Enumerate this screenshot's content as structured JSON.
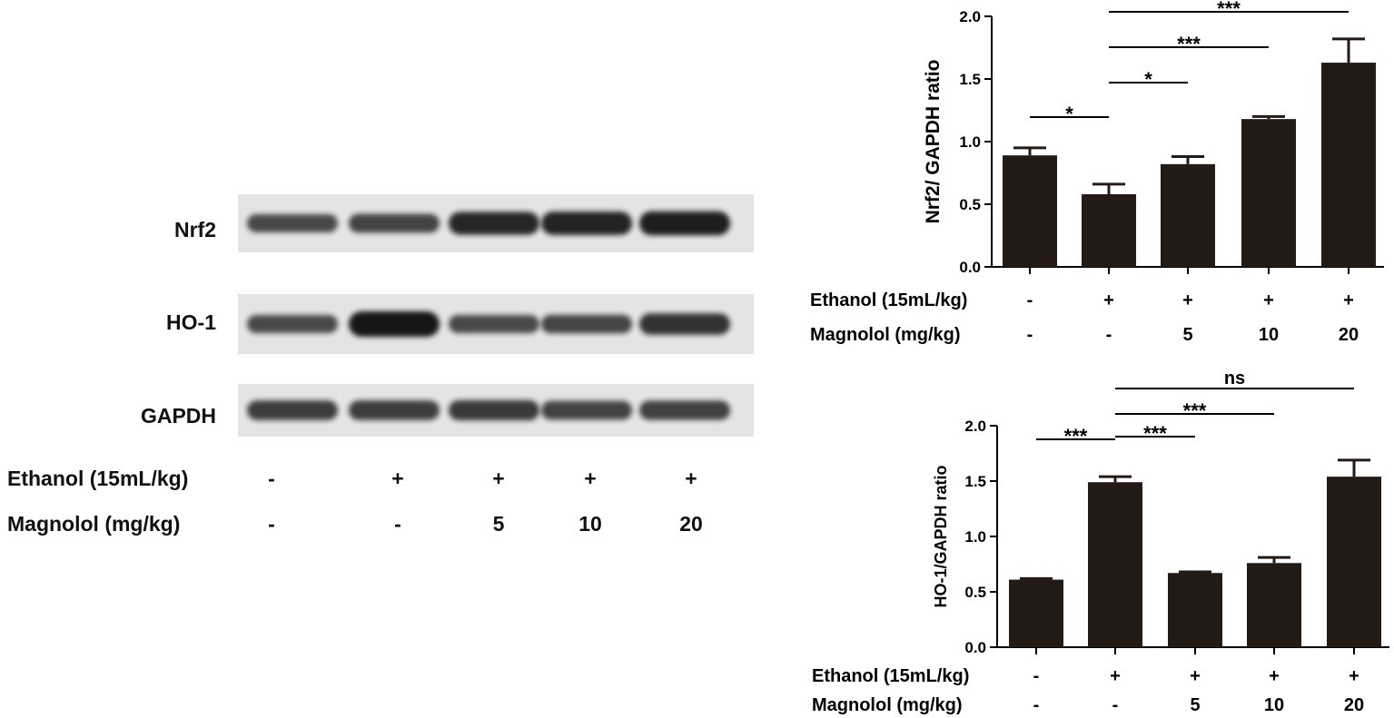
{
  "blot": {
    "rows": [
      {
        "label": "Nrf2",
        "intensities": [
          0.55,
          0.6,
          0.85,
          0.88,
          0.92
        ]
      },
      {
        "label": "HO-1",
        "intensities": [
          0.55,
          1.0,
          0.55,
          0.58,
          0.75
        ]
      },
      {
        "label": "GAPDH",
        "intensities": [
          0.65,
          0.65,
          0.68,
          0.6,
          0.62
        ]
      }
    ],
    "conditions": {
      "ethanol_label": "Ethanol (15mL/kg)",
      "ethanol_values": [
        "-",
        "+",
        "+",
        "+",
        "+"
      ],
      "magnolol_label": "Magnolol (mg/kg)",
      "magnolol_values": [
        "-",
        "-",
        "5",
        "10",
        "20"
      ]
    }
  },
  "chart_data": [
    {
      "type": "bar",
      "ylabel": "Nrf2/ GAPDH ratio",
      "ylim": [
        0,
        2.0
      ],
      "yticks": [
        "0.0",
        "0.5",
        "1.0",
        "1.5",
        "2.0"
      ],
      "values": [
        0.89,
        0.58,
        0.82,
        1.18,
        1.63
      ],
      "errors": [
        0.06,
        0.08,
        0.06,
        0.02,
        0.19
      ],
      "bar_color": "#231a16",
      "significance": [
        {
          "from": 0,
          "to": 1,
          "label": "*"
        },
        {
          "from": 1,
          "to": 2,
          "label": "*"
        },
        {
          "from": 1,
          "to": 3,
          "label": "***"
        },
        {
          "from": 1,
          "to": 4,
          "label": "***"
        }
      ],
      "ethanol_label": "Ethanol (15mL/kg)",
      "ethanol_values": [
        "-",
        "+",
        "+",
        "+",
        "+"
      ],
      "magnolol_label": "Magnolol (mg/kg)",
      "magnolol_values": [
        "-",
        "-",
        "5",
        "10",
        "20"
      ]
    },
    {
      "type": "bar",
      "ylabel": "HO-1/GAPDH ratio",
      "ylim": [
        0,
        2.0
      ],
      "yticks": [
        "0.0",
        "0.5",
        "1.0",
        "1.5",
        "2.0"
      ],
      "values": [
        0.61,
        1.49,
        0.67,
        0.76,
        1.54
      ],
      "errors": [
        0.01,
        0.05,
        0.01,
        0.05,
        0.15
      ],
      "bar_color": "#231a16",
      "significance": [
        {
          "from": 0,
          "to": 1,
          "label": "***"
        },
        {
          "from": 1,
          "to": 2,
          "label": "***"
        },
        {
          "from": 1,
          "to": 3,
          "label": "***"
        },
        {
          "from": 1,
          "to": 4,
          "label": "ns"
        }
      ],
      "ethanol_label": "Ethanol (15mL/kg)",
      "ethanol_values": [
        "-",
        "+",
        "+",
        "+",
        "+"
      ],
      "magnolol_label": "Magnolol (mg/kg)",
      "magnolol_values": [
        "-",
        "-",
        "5",
        "10",
        "20"
      ]
    }
  ]
}
